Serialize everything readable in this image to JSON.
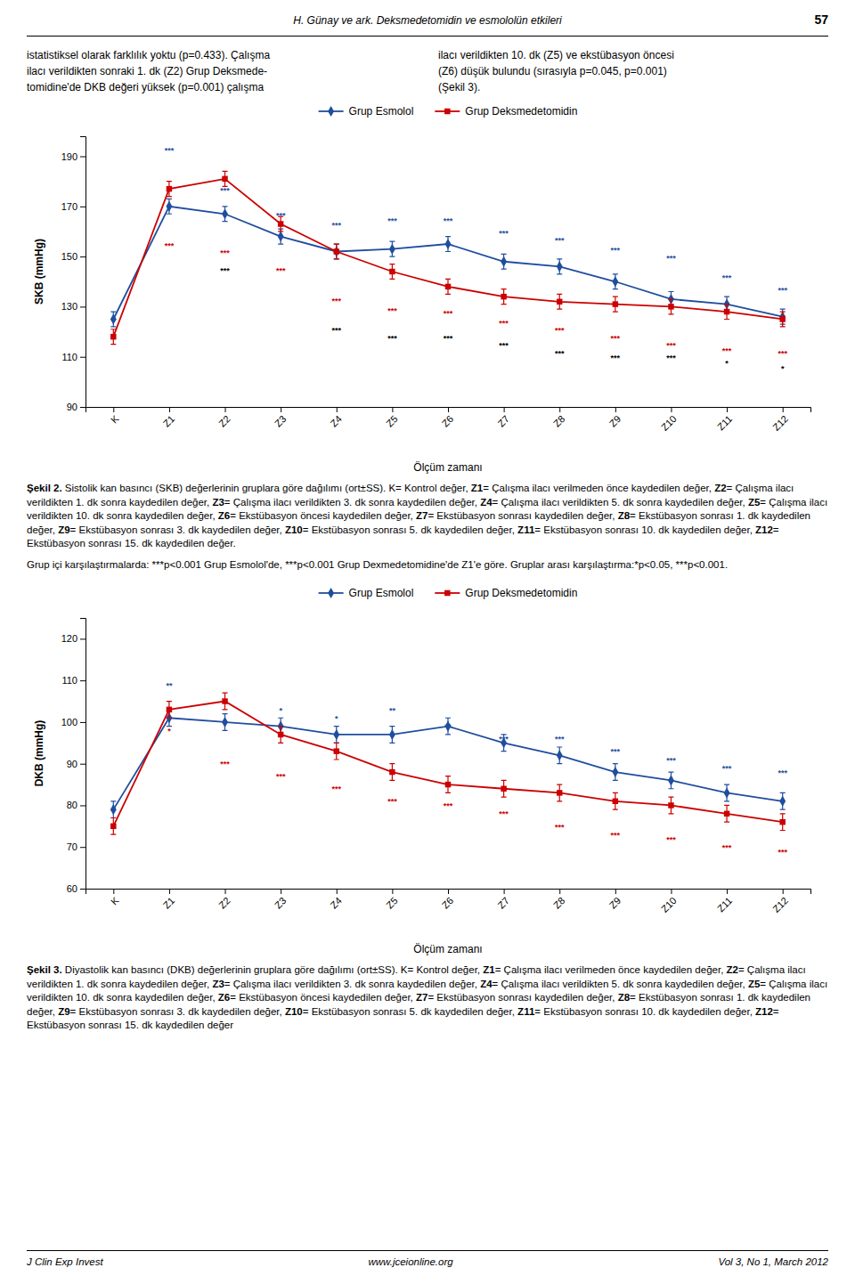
{
  "page_title": "H. Günay ve ark. Deksmedetomidin ve esmololün etkileri",
  "page_number": "57",
  "header_left_lines": [
    "istatistiksel olarak farklılık yoktu (p=0.433). Çalışma",
    "ilacı verildikten sonraki 1. dk (Z2) Grup Deksmede-",
    "tomidine'de DKB değeri yüksek (p=0.001) çalışma"
  ],
  "header_right_lines": [
    "ilacı verildikten 10. dk (Z5) ve ekstübasyon öncesi",
    "(Z6) düşük bulundu (sırasıyla p=0.045,  p=0.001)",
    "(Şekil 3)."
  ],
  "captions": [
    [
      {
        "text": "Şekil 2. ",
        "bold": true
      },
      {
        "text": "Sistolik kan basıncı (SKB) değerlerinin gruplara göre dağılımı (ort±SS). K= Kontrol değer, ",
        "bold": false
      },
      {
        "text": "Z1",
        "bold": true
      },
      {
        "text": "= Çalışma ilacı verilmeden önce kaydedilen değer, ",
        "bold": false
      },
      {
        "text": "Z2",
        "bold": true
      },
      {
        "text": "= Çalışma ilacı verildikten 1. dk sonra kaydedilen değer, ",
        "bold": false
      },
      {
        "text": "Z3",
        "bold": true
      },
      {
        "text": "= Çalışma ilacı verildikten 3. dk sonra kaydedilen değer, ",
        "bold": false
      },
      {
        "text": "Z4",
        "bold": true
      },
      {
        "text": "= Çalışma ilacı verildikten 5. dk sonra kaydedilen değer, ",
        "bold": false
      },
      {
        "text": "Z5",
        "bold": true
      },
      {
        "text": "= Çalışma ilacı verildikten 10. dk sonra kaydedilen değer, ",
        "bold": false
      },
      {
        "text": "Z6",
        "bold": true
      },
      {
        "text": "= Ekstübasyon öncesi kaydedilen değer, ",
        "bold": false
      },
      {
        "text": "Z7",
        "bold": true
      },
      {
        "text": "= Ekstübasyon sonrası kaydedilen değer, ",
        "bold": false
      },
      {
        "text": "Z8",
        "bold": true
      },
      {
        "text": "= Ekstübasyon sonrası 1. dk kaydedilen değer, ",
        "bold": false
      },
      {
        "text": "Z9",
        "bold": true
      },
      {
        "text": "= Ekstübasyon sonrası 3. dk kaydedilen değer, ",
        "bold": false
      },
      {
        "text": "Z10",
        "bold": true
      },
      {
        "text": "= Ekstübasyon sonrası 5. dk kaydedilen değer, ",
        "bold": false
      },
      {
        "text": "Z11",
        "bold": true
      },
      {
        "text": "= Ekstübasyon sonrası 10. dk kaydedilen değer, ",
        "bold": false
      },
      {
        "text": "Z12",
        "bold": true
      },
      {
        "text": "= Ekstübasyon sonrası 15. dk kaydedilen değer.",
        "bold": false
      }
    ],
    [
      {
        "text": "Şekil 3. ",
        "bold": true
      },
      {
        "text": "Diyastolik kan basıncı (DKB) değerlerinin gruplara göre dağılımı (ort±SS). K= Kontrol değer, ",
        "bold": false
      },
      {
        "text": "Z1",
        "bold": true
      },
      {
        "text": "= Çalışma ilacı verilmeden önce kaydedilen değer, ",
        "bold": false
      },
      {
        "text": "Z2",
        "bold": true
      },
      {
        "text": "= Çalışma ilacı verildikten 1. dk sonra kaydedilen değer, ",
        "bold": false
      },
      {
        "text": "Z3",
        "bold": true
      },
      {
        "text": "= Çalışma ilacı verildikten 3. dk sonra kaydedilen değer, ",
        "bold": false
      },
      {
        "text": "Z4",
        "bold": true
      },
      {
        "text": "= Çalışma ilacı verildikten 5. dk sonra kaydedilen değer, ",
        "bold": false
      },
      {
        "text": "Z5",
        "bold": true
      },
      {
        "text": "= Çalışma ilacı verildikten 10. dk sonra kaydedilen değer, ",
        "bold": false
      },
      {
        "text": "Z6",
        "bold": true
      },
      {
        "text": "= Ekstübasyon öncesi kaydedilen değer, ",
        "bold": false
      },
      {
        "text": "Z7",
        "bold": true
      },
      {
        "text": "= Ekstübasyon sonrası kaydedilen değer, ",
        "bold": false
      },
      {
        "text": "Z8",
        "bold": true
      },
      {
        "text": "= Ekstübasyon sonrası 1. dk kaydedilen değer, ",
        "bold": false
      },
      {
        "text": "Z9",
        "bold": true
      },
      {
        "text": "= Ekstübasyon sonrası 3. dk kaydedilen değer, ",
        "bold": false
      },
      {
        "text": "Z10",
        "bold": true
      },
      {
        "text": "= Ekstübasyon sonrası 5. dk kaydedilen değer, ",
        "bold": false
      },
      {
        "text": "Z11",
        "bold": true
      },
      {
        "text": "= Ekstübasyon sonrası 10. dk kaydedilen değer, ",
        "bold": false
      },
      {
        "text": "Z12",
        "bold": true
      },
      {
        "text": "= Ekstübasyon sonrası 15. dk kaydedilen değer",
        "bold": false
      }
    ]
  ],
  "group_compare_text": "Grup içi karşılaştırmalarda: ***p<0.001 Grup Esmolol'de, ***p<0.001 Grup Dexmedetomidine'de Z1'e göre. Gruplar arası karşılaştırma:*p<0.05, ***p<0.001.",
  "footer_left": "J Clin Exp Invest",
  "footer_center": "www.jceionline.org",
  "footer_right": "Vol 3, No 1, March 2012",
  "chart_data": [
    {
      "type": "line",
      "x_label": "Ölçüm zamanı",
      "y_label": "SKB (mmHg)",
      "categories": [
        "K",
        "Z1",
        "Z2",
        "Z3",
        "Z4",
        "Z5",
        "Z6",
        "Z7",
        "Z8",
        "Z9",
        "Z10",
        "Z11",
        "Z12"
      ],
      "ylim": [
        90,
        198
      ],
      "yticks": [
        90,
        110,
        130,
        150,
        170,
        190
      ],
      "grid": false,
      "legend": "top",
      "series": [
        {
          "name": "Grup Esmolol",
          "color": "#1f4e9e",
          "marker": "diamond",
          "values": [
            125,
            170,
            167,
            158,
            152,
            153,
            155,
            148,
            146,
            140,
            133,
            131,
            126
          ],
          "errors": [
            3,
            3,
            3,
            3,
            3,
            3,
            3,
            3,
            3,
            3,
            3,
            3,
            3
          ]
        },
        {
          "name": "Grup Deksmedetomidin",
          "color": "#cc0000",
          "marker": "square",
          "values": [
            118,
            177,
            181,
            163,
            152,
            144,
            138,
            134,
            132,
            131,
            130,
            128,
            125
          ],
          "errors": [
            3,
            3,
            3,
            3,
            3,
            3,
            3,
            3,
            3,
            3,
            3,
            3,
            3
          ]
        }
      ],
      "annotations": [
        {
          "x": "Z1",
          "y": 191,
          "text": "***",
          "color": "#1f4e9e"
        },
        {
          "x": "Z2",
          "y": 175,
          "text": "***",
          "color": "#1f4e9e"
        },
        {
          "x": "Z3",
          "y": 165,
          "text": "***",
          "color": "#1f4e9e"
        },
        {
          "x": "Z4",
          "y": 161,
          "text": "***",
          "color": "#1f4e9e"
        },
        {
          "x": "Z5",
          "y": 163,
          "text": "***",
          "color": "#1f4e9e"
        },
        {
          "x": "Z6",
          "y": 163,
          "text": "***",
          "color": "#1f4e9e"
        },
        {
          "x": "Z7",
          "y": 158,
          "text": "***",
          "color": "#1f4e9e"
        },
        {
          "x": "Z8",
          "y": 155,
          "text": "***",
          "color": "#1f4e9e"
        },
        {
          "x": "Z9",
          "y": 151,
          "text": "***",
          "color": "#1f4e9e"
        },
        {
          "x": "Z10",
          "y": 148,
          "text": "***",
          "color": "#1f4e9e"
        },
        {
          "x": "Z11",
          "y": 140,
          "text": "***",
          "color": "#1f4e9e"
        },
        {
          "x": "Z12",
          "y": 135,
          "text": "***",
          "color": "#1f4e9e"
        },
        {
          "x": "Z1",
          "y": 153,
          "text": "***",
          "color": "#cc0000"
        },
        {
          "x": "Z2",
          "y": 150,
          "text": "***",
          "color": "#cc0000"
        },
        {
          "x": "Z3",
          "y": 143,
          "text": "***",
          "color": "#cc0000"
        },
        {
          "x": "Z4",
          "y": 131,
          "text": "***",
          "color": "#cc0000"
        },
        {
          "x": "Z5",
          "y": 127,
          "text": "***",
          "color": "#cc0000"
        },
        {
          "x": "Z6",
          "y": 126,
          "text": "***",
          "color": "#cc0000"
        },
        {
          "x": "Z7",
          "y": 122,
          "text": "***",
          "color": "#cc0000"
        },
        {
          "x": "Z8",
          "y": 119,
          "text": "***",
          "color": "#cc0000"
        },
        {
          "x": "Z9",
          "y": 116,
          "text": "***",
          "color": "#cc0000"
        },
        {
          "x": "Z10",
          "y": 113,
          "text": "***",
          "color": "#cc0000"
        },
        {
          "x": "Z11",
          "y": 111,
          "text": "***",
          "color": "#cc0000"
        },
        {
          "x": "Z12",
          "y": 110,
          "text": "***",
          "color": "#cc0000"
        },
        {
          "x": "Z2",
          "y": 143,
          "text": "***",
          "color": "#000000"
        },
        {
          "x": "Z4",
          "y": 119,
          "text": "***",
          "color": "#000000"
        },
        {
          "x": "Z5",
          "y": 116,
          "text": "***",
          "color": "#000000"
        },
        {
          "x": "Z6",
          "y": 116,
          "text": "***",
          "color": "#000000"
        },
        {
          "x": "Z7",
          "y": 113,
          "text": "***",
          "color": "#000000"
        },
        {
          "x": "Z8",
          "y": 110,
          "text": "***",
          "color": "#000000"
        },
        {
          "x": "Z9",
          "y": 108,
          "text": "***",
          "color": "#000000"
        },
        {
          "x": "Z10",
          "y": 108,
          "text": "***",
          "color": "#000000"
        },
        {
          "x": "Z11",
          "y": 106,
          "text": "*",
          "color": "#000000"
        },
        {
          "x": "Z12",
          "y": 104,
          "text": "*",
          "color": "#000000"
        }
      ]
    },
    {
      "type": "line",
      "x_label": "Ölçüm zamanı",
      "y_label": "DKB (mmHg)",
      "categories": [
        "K",
        "Z1",
        "Z2",
        "Z3",
        "Z4",
        "Z5",
        "Z6",
        "Z7",
        "Z8",
        "Z9",
        "Z10",
        "Z11",
        "Z12"
      ],
      "ylim": [
        60,
        125
      ],
      "yticks": [
        60,
        70,
        80,
        90,
        100,
        110,
        120
      ],
      "grid": false,
      "legend": "top",
      "series": [
        {
          "name": "Grup Esmolol",
          "color": "#1f4e9e",
          "marker": "diamond",
          "values": [
            79,
            101,
            100,
            99,
            97,
            97,
            99,
            95,
            92,
            88,
            86,
            83,
            81
          ],
          "errors": [
            2,
            2,
            2,
            2,
            2,
            2,
            2,
            2,
            2,
            2,
            2,
            2,
            2
          ]
        },
        {
          "name": "Grup Deksmedetomidin",
          "color": "#cc0000",
          "marker": "square",
          "values": [
            75,
            103,
            105,
            97,
            93,
            88,
            85,
            84,
            83,
            81,
            80,
            78,
            76
          ],
          "errors": [
            2,
            2,
            2,
            2,
            2,
            2,
            2,
            2,
            2,
            2,
            2,
            2,
            2
          ]
        }
      ],
      "annotations": [
        {
          "x": "Z1",
          "y": 108,
          "text": "**",
          "color": "#1f4e9e"
        },
        {
          "x": "Z3",
          "y": 102,
          "text": "*",
          "color": "#1f4e9e"
        },
        {
          "x": "Z4",
          "y": 100,
          "text": "*",
          "color": "#1f4e9e"
        },
        {
          "x": "Z5",
          "y": 102,
          "text": "**",
          "color": "#1f4e9e"
        },
        {
          "x": "Z6",
          "y": 98,
          "text": "**",
          "color": "#1f4e9e"
        },
        {
          "x": "Z7",
          "y": 95,
          "text": "***",
          "color": "#1f4e9e"
        },
        {
          "x": "Z8",
          "y": 95,
          "text": "***",
          "color": "#1f4e9e"
        },
        {
          "x": "Z9",
          "y": 92,
          "text": "***",
          "color": "#1f4e9e"
        },
        {
          "x": "Z10",
          "y": 90,
          "text": "***",
          "color": "#1f4e9e"
        },
        {
          "x": "Z11",
          "y": 88,
          "text": "***",
          "color": "#1f4e9e"
        },
        {
          "x": "Z12",
          "y": 87,
          "text": "***",
          "color": "#1f4e9e"
        },
        {
          "x": "Z1",
          "y": 97,
          "text": "*",
          "color": "#cc0000"
        },
        {
          "x": "Z2",
          "y": 89,
          "text": "***",
          "color": "#cc0000"
        },
        {
          "x": "Z3",
          "y": 86,
          "text": "***",
          "color": "#cc0000"
        },
        {
          "x": "Z4",
          "y": 83,
          "text": "***",
          "color": "#cc0000"
        },
        {
          "x": "Z5",
          "y": 80,
          "text": "***",
          "color": "#cc0000"
        },
        {
          "x": "Z6",
          "y": 79,
          "text": "***",
          "color": "#cc0000"
        },
        {
          "x": "Z7",
          "y": 77,
          "text": "***",
          "color": "#cc0000"
        },
        {
          "x": "Z8",
          "y": 74,
          "text": "***",
          "color": "#cc0000"
        },
        {
          "x": "Z9",
          "y": 72,
          "text": "***",
          "color": "#cc0000"
        },
        {
          "x": "Z10",
          "y": 71,
          "text": "***",
          "color": "#cc0000"
        },
        {
          "x": "Z11",
          "y": 69,
          "text": "***",
          "color": "#cc0000"
        },
        {
          "x": "Z12",
          "y": 68,
          "text": "***",
          "color": "#cc0000"
        }
      ]
    }
  ]
}
